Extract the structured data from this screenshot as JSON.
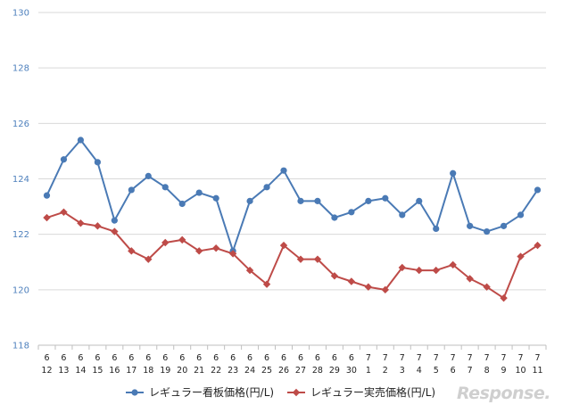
{
  "chart_data": {
    "type": "line",
    "title": "",
    "xlabel": "",
    "ylabel": "",
    "ylim": [
      118,
      130
    ],
    "yticks": [
      118,
      120,
      122,
      124,
      126,
      128,
      130
    ],
    "grid": true,
    "legend_position": "bottom",
    "categories": [
      {
        "month": "6",
        "day": "12"
      },
      {
        "month": "6",
        "day": "13"
      },
      {
        "month": "6",
        "day": "14"
      },
      {
        "month": "6",
        "day": "15"
      },
      {
        "month": "6",
        "day": "16"
      },
      {
        "month": "6",
        "day": "17"
      },
      {
        "month": "6",
        "day": "18"
      },
      {
        "month": "6",
        "day": "19"
      },
      {
        "month": "6",
        "day": "20"
      },
      {
        "month": "6",
        "day": "21"
      },
      {
        "month": "6",
        "day": "22"
      },
      {
        "month": "6",
        "day": "23"
      },
      {
        "month": "6",
        "day": "24"
      },
      {
        "month": "6",
        "day": "25"
      },
      {
        "month": "6",
        "day": "26"
      },
      {
        "month": "6",
        "day": "27"
      },
      {
        "month": "6",
        "day": "28"
      },
      {
        "month": "6",
        "day": "29"
      },
      {
        "month": "6",
        "day": "30"
      },
      {
        "month": "7",
        "day": "1"
      },
      {
        "month": "7",
        "day": "2"
      },
      {
        "month": "7",
        "day": "3"
      },
      {
        "month": "7",
        "day": "4"
      },
      {
        "month": "7",
        "day": "5"
      },
      {
        "month": "7",
        "day": "6"
      },
      {
        "month": "7",
        "day": "7"
      },
      {
        "month": "7",
        "day": "8"
      },
      {
        "month": "7",
        "day": "9"
      },
      {
        "month": "7",
        "day": "10"
      },
      {
        "month": "7",
        "day": "11"
      }
    ],
    "series": [
      {
        "name": "レギュラー看板価格(円/L)",
        "color": "#4a7ab5",
        "marker": "circle",
        "values": [
          123.4,
          124.7,
          125.4,
          124.6,
          122.5,
          123.6,
          124.1,
          123.7,
          123.1,
          123.5,
          123.3,
          121.4,
          123.2,
          123.7,
          124.3,
          123.2,
          123.2,
          122.6,
          122.8,
          123.2,
          123.3,
          122.7,
          123.2,
          122.2,
          124.2,
          122.3,
          122.1,
          122.3,
          122.7,
          123.6
        ]
      },
      {
        "name": "レギュラー実売価格(円/L)",
        "color": "#be4b48",
        "marker": "diamond",
        "values": [
          122.6,
          122.8,
          122.4,
          122.3,
          122.1,
          121.4,
          121.1,
          121.7,
          121.8,
          121.4,
          121.5,
          121.3,
          120.7,
          120.2,
          121.6,
          121.1,
          121.1,
          120.5,
          120.3,
          120.1,
          120.0,
          120.8,
          120.7,
          120.7,
          120.9,
          120.4,
          120.1,
          119.7,
          121.2,
          121.6
        ]
      }
    ]
  },
  "watermark": {
    "text": "Response."
  }
}
